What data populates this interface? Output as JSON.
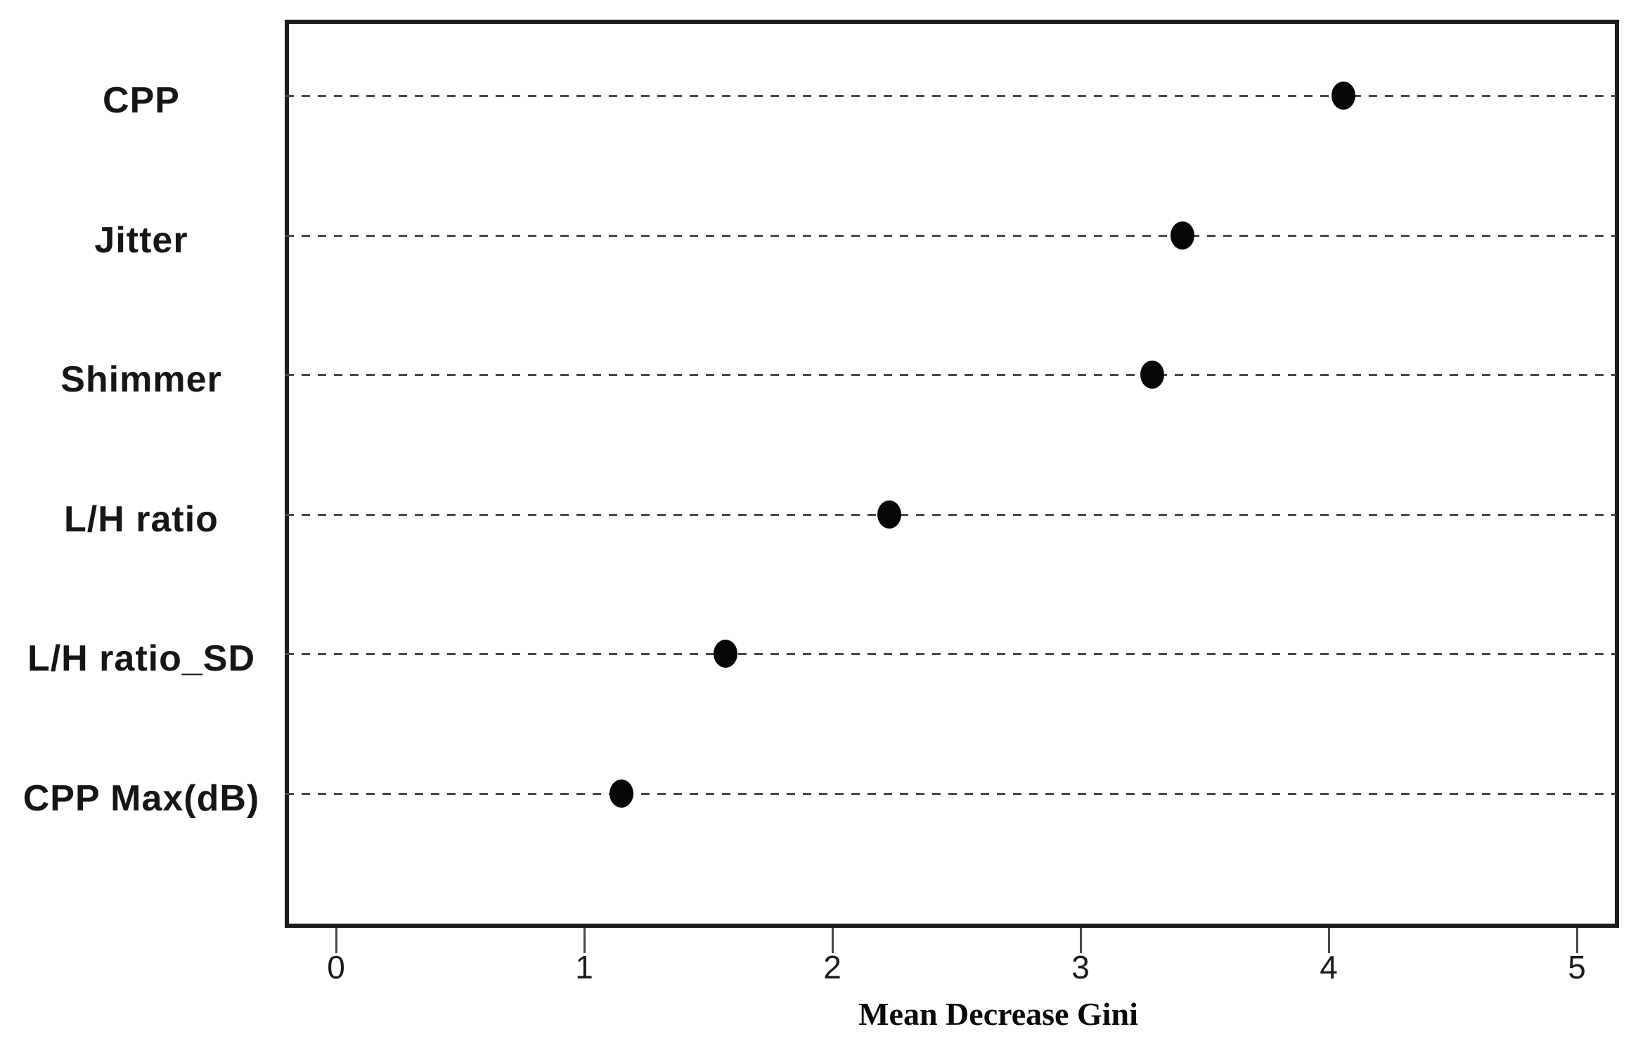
{
  "chart_data": {
    "type": "scatter",
    "variant": "dot-plot-variable-importance",
    "title": "",
    "xlabel": "Mean Decrease Gini",
    "ylabel": "",
    "categories": [
      "CPP",
      "Jitter",
      "Shimmer",
      "L/H ratio",
      "L/H ratio_SD",
      "CPP Max(dB)"
    ],
    "values": [
      4.06,
      3.41,
      3.29,
      2.23,
      1.57,
      1.15
    ],
    "x_ticks": [
      "0",
      "1",
      "2",
      "3",
      "4",
      "5"
    ],
    "xlim": [
      -0.21,
      5.17
    ],
    "grid": "horizontal dashed line per category",
    "legend_position": "none",
    "point_color": "#060606",
    "gridline_color": "#4a4a4a",
    "border_color": "#1c1c1c",
    "background_color": "#ffffff"
  }
}
